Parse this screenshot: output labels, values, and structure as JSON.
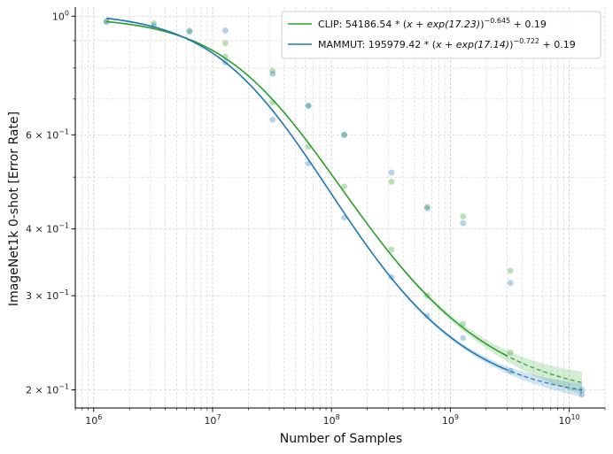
{
  "chart_data": {
    "type": "scatter",
    "title": "",
    "xlabel": "Number of Samples",
    "ylabel": "ImageNet1k 0-shot [Error Rate]",
    "xscale": "log",
    "yscale": "log",
    "xlim": [
      700000,
      20000000000
    ],
    "ylim": [
      0.185,
      1.04
    ],
    "xticks": [
      {
        "value": 1000000,
        "base": "10",
        "exp": "6"
      },
      {
        "value": 10000000,
        "base": "10",
        "exp": "7"
      },
      {
        "value": 100000000,
        "base": "10",
        "exp": "8"
      },
      {
        "value": 1000000000,
        "base": "10",
        "exp": "9"
      },
      {
        "value": 10000000000,
        "base": "10",
        "exp": "10"
      }
    ],
    "yticks": [
      {
        "value": 1.0,
        "mant": "",
        "base": "10",
        "exp": "0"
      },
      {
        "value": 0.6,
        "mant": "6 × ",
        "base": "10",
        "exp": "−1"
      },
      {
        "value": 0.4,
        "mant": "4 × ",
        "base": "10",
        "exp": "−1"
      },
      {
        "value": 0.3,
        "mant": "3 × ",
        "base": "10",
        "exp": "−1"
      },
      {
        "value": 0.2,
        "mant": "2 × ",
        "base": "10",
        "exp": "−1"
      }
    ],
    "grid": true,
    "legend_position": "top-right",
    "fit_xmax": 12800000000,
    "extrapolate_from": 3200000000,
    "series": [
      {
        "name": "CLIP",
        "color": "#2ca02c",
        "fit": {
          "A": 54186.54,
          "B": 17.23,
          "alpha": 0.645,
          "E": 0.19
        },
        "legend": {
          "prefix": "CLIP: 54186.54 * (",
          "expr": "x + exp(17.23)",
          "suffix": ")",
          "exp": "−0.645",
          "tail": " + 0.19"
        },
        "points": [
          {
            "x": 1280000,
            "y": 0.98
          },
          {
            "x": 3200000,
            "y": 0.97
          },
          {
            "x": 6400000,
            "y": 0.94
          },
          {
            "x": 12800000,
            "y": 0.89
          },
          {
            "x": 12800000,
            "y": 0.84
          },
          {
            "x": 32000000,
            "y": 0.79
          },
          {
            "x": 32000000,
            "y": 0.69
          },
          {
            "x": 64000000,
            "y": 0.68
          },
          {
            "x": 64000000,
            "y": 0.57
          },
          {
            "x": 128000000,
            "y": 0.6
          },
          {
            "x": 128000000,
            "y": 0.48
          },
          {
            "x": 320000000,
            "y": 0.49
          },
          {
            "x": 320000000,
            "y": 0.366
          },
          {
            "x": 640000000,
            "y": 0.44
          },
          {
            "x": 640000000,
            "y": 0.3
          },
          {
            "x": 1280000000,
            "y": 0.422
          },
          {
            "x": 1280000000,
            "y": 0.266
          },
          {
            "x": 3200000000,
            "y": 0.334
          },
          {
            "x": 3200000000,
            "y": 0.235
          }
        ]
      },
      {
        "name": "MAMMUT",
        "color": "#1f77b4",
        "fit": {
          "A": 195979.42,
          "B": 17.14,
          "alpha": 0.722,
          "E": 0.19
        },
        "legend": {
          "prefix": "MAMMUT: 195979.42 * (",
          "expr": "x + exp(17.14)",
          "suffix": ")",
          "exp": "−0.722",
          "tail": " + 0.19"
        },
        "points": [
          {
            "x": 1280000,
            "y": 0.975
          },
          {
            "x": 3200000,
            "y": 0.96
          },
          {
            "x": 6400000,
            "y": 0.935
          },
          {
            "x": 12800000,
            "y": 0.94
          },
          {
            "x": 12800000,
            "y": 0.82
          },
          {
            "x": 32000000,
            "y": 0.78
          },
          {
            "x": 32000000,
            "y": 0.64
          },
          {
            "x": 64000000,
            "y": 0.68
          },
          {
            "x": 64000000,
            "y": 0.53
          },
          {
            "x": 128000000,
            "y": 0.6
          },
          {
            "x": 128000000,
            "y": 0.42
          },
          {
            "x": 320000000,
            "y": 0.51
          },
          {
            "x": 320000000,
            "y": 0.325
          },
          {
            "x": 640000000,
            "y": 0.437
          },
          {
            "x": 640000000,
            "y": 0.275
          },
          {
            "x": 1280000000,
            "y": 0.41
          },
          {
            "x": 1280000000,
            "y": 0.25
          },
          {
            "x": 3200000000,
            "y": 0.317
          },
          {
            "x": 3200000000,
            "y": 0.217
          },
          {
            "x": 12800000000,
            "y": 0.2
          },
          {
            "x": 12800000000,
            "y": 0.196
          }
        ]
      }
    ]
  }
}
